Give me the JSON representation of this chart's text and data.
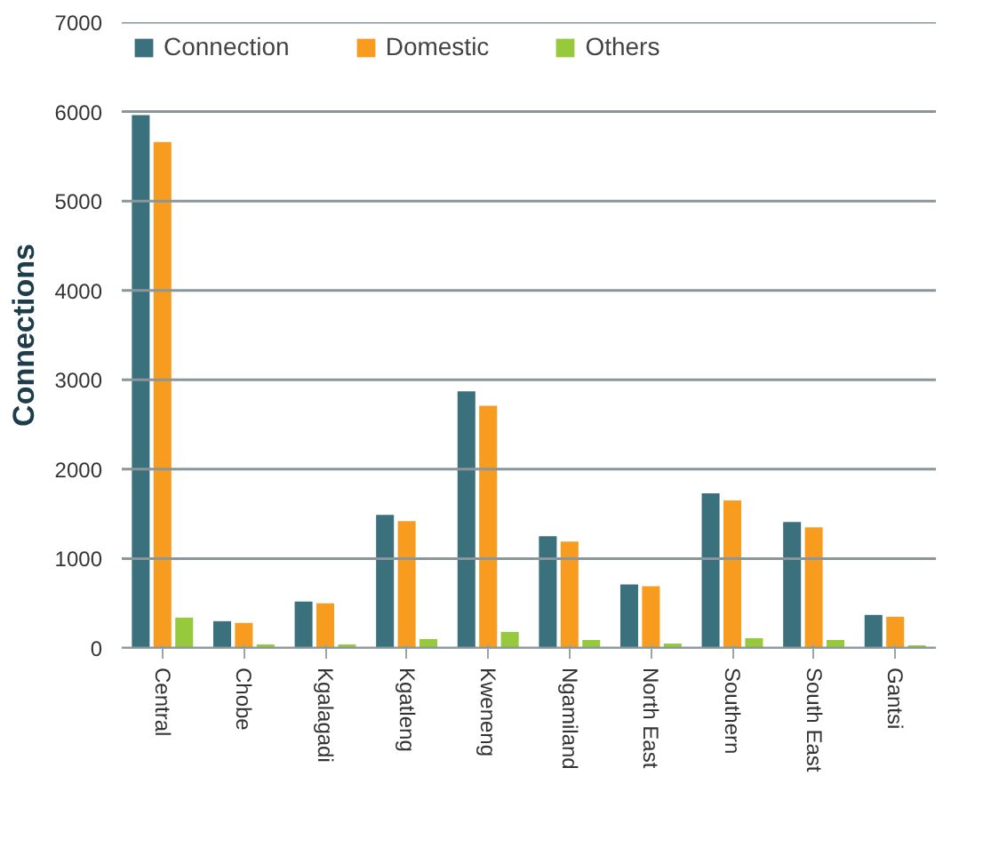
{
  "chart_data": {
    "type": "bar",
    "ylabel": "Connections",
    "categories": [
      "Central",
      "Chobe",
      "Kgalagadi",
      "Kgatleng",
      "Kweneng",
      "Ngamiland",
      "North East",
      "Southern",
      "South East",
      "Gantsi"
    ],
    "series": [
      {
        "name": "Connection",
        "color": "#3b717c",
        "values": [
          5960,
          300,
          520,
          1490,
          2870,
          1250,
          710,
          1730,
          1410,
          370
        ]
      },
      {
        "name": "Domestic",
        "color": "#f89c1f",
        "values": [
          5660,
          280,
          500,
          1420,
          2710,
          1190,
          690,
          1650,
          1350,
          350
        ]
      },
      {
        "name": "Others",
        "color": "#97c93d",
        "values": [
          340,
          40,
          40,
          100,
          180,
          90,
          50,
          110,
          90,
          30
        ]
      }
    ],
    "ylim": [
      0,
      7000
    ],
    "yticks": [
      0,
      1000,
      2000,
      3000,
      4000,
      5000,
      6000,
      7000
    ],
    "grid": "y",
    "legend": "top left"
  }
}
